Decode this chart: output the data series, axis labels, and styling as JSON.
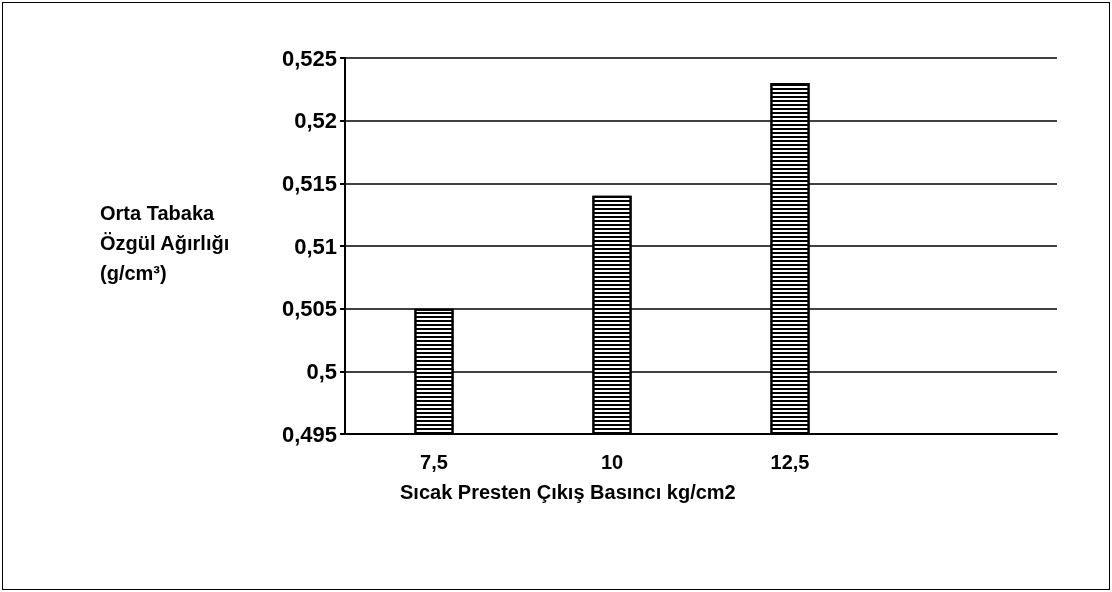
{
  "chart_data": {
    "type": "bar",
    "xlabel": "Sıcak Presten Çıkış Basıncı kg/cm2",
    "ylabel": "Orta Tabaka\nÖzgül Ağırlığı\n(g/cm³)",
    "categories": [
      "7,5",
      "10",
      "12,5",
      null
    ],
    "values": [
      0.505,
      0.514,
      0.523,
      null
    ],
    "color": "#ffffff",
    "ylim": [
      0.495,
      0.525
    ],
    "yticks": [
      {
        "value": 0.495,
        "label": "0,495"
      },
      {
        "value": 0.5,
        "label": "0,5"
      },
      {
        "value": 0.505,
        "label": "0,505"
      },
      {
        "value": 0.51,
        "label": "0,51"
      },
      {
        "value": 0.515,
        "label": "0,515"
      },
      {
        "value": 0.52,
        "label": "0,52"
      },
      {
        "value": 0.525,
        "label": "0,525"
      }
    ],
    "grid": "y"
  }
}
